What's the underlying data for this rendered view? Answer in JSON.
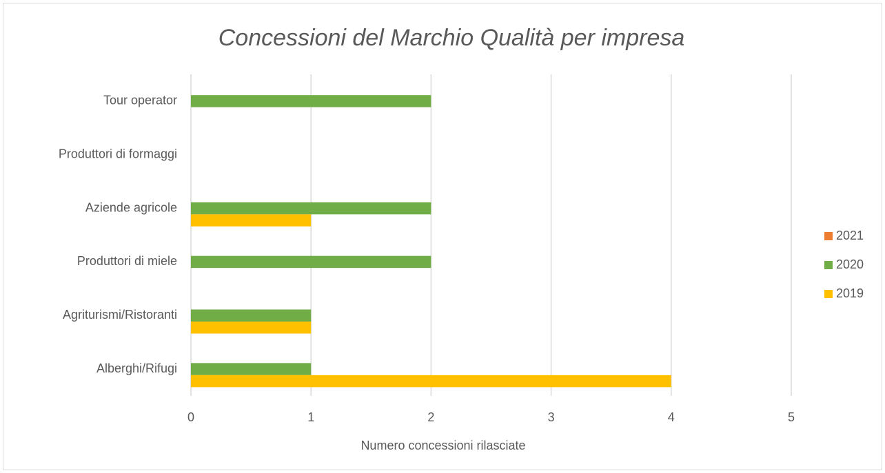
{
  "chart_data": {
    "type": "bar",
    "orientation": "horizontal",
    "title": "Concessioni del Marchio Qualità per impresa",
    "x_label": "Numero concessioni rilasciate",
    "categories": [
      "Alberghi/Rifugi",
      "Agriturismi/Ristoranti",
      "Produttori di miele",
      "Aziende agricole",
      "Produttori di formaggi",
      "Tour operator"
    ],
    "series": [
      {
        "name": "2021",
        "color": "#ed7d31",
        "values": [
          0,
          0,
          0,
          0,
          0,
          0
        ]
      },
      {
        "name": "2020",
        "color": "#70ad47",
        "values": [
          1,
          1,
          2,
          2,
          0,
          2
        ]
      },
      {
        "name": "2019",
        "color": "#ffc000",
        "values": [
          4,
          1,
          0,
          1,
          0,
          0
        ]
      }
    ],
    "xlim": [
      0,
      5
    ],
    "xticks": [
      0,
      1,
      2,
      3,
      4,
      5
    ],
    "grid": true,
    "legend": "right"
  }
}
